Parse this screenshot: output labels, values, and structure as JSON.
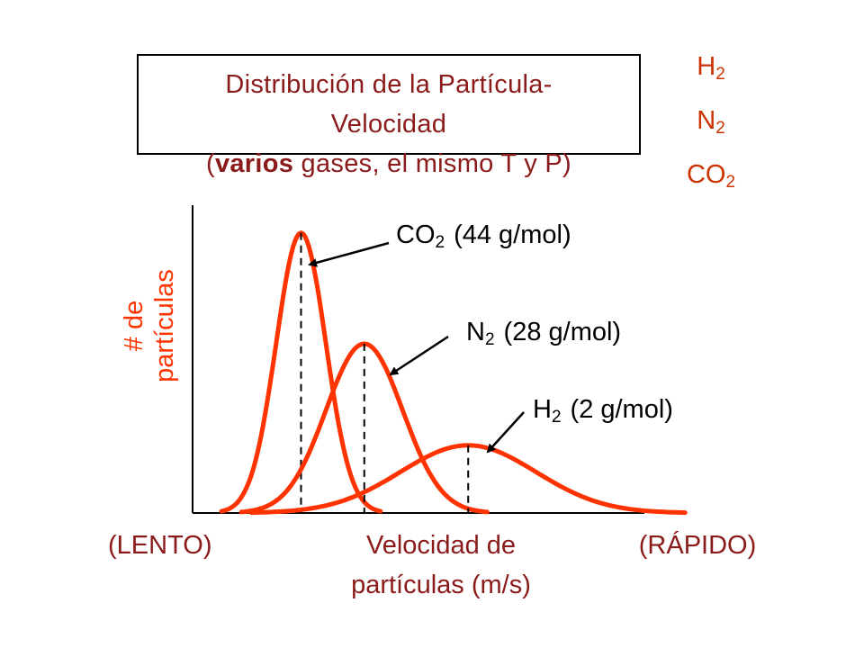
{
  "title": {
    "line1": "Distribución de la Partícula-",
    "line2": "Velocidad",
    "line3_open": "(",
    "line3_bold": "varios",
    "line3_rest": " gases, el mismo T y P)"
  },
  "gas_list": [
    {
      "base": "H",
      "sub": "2"
    },
    {
      "base": "N",
      "sub": "2"
    },
    {
      "base": "CO",
      "sub": "2"
    }
  ],
  "axes": {
    "ylabel_line1": "# de",
    "ylabel_line2": "partículas",
    "xlabel": "Velocidad de partículas (m/s)",
    "x_left": "(LENTO)",
    "x_right": "(RÁPIDO)"
  },
  "chart_data": {
    "type": "line",
    "x_range": [
      0,
      100
    ],
    "y_range": [
      0,
      100
    ],
    "grid": false,
    "series": [
      {
        "name": "CO2 (44 g/mol)",
        "base": "CO",
        "sub": "2",
        "mass": "(44 g/mol)",
        "peak_x": 24,
        "peak_y": 91,
        "width": 5.5
      },
      {
        "name": "N2 (28 g/mol)",
        "base": "N",
        "sub": "2",
        "mass": "(28 g/mol)",
        "peak_x": 38,
        "peak_y": 55,
        "width": 8.5
      },
      {
        "name": "H2 (2 g/mol)",
        "base": "H",
        "sub": "2",
        "mass": "(2 g/mol)",
        "peak_x": 61,
        "peak_y": 22,
        "width": 15
      }
    ],
    "colors": {
      "curve": "#ff3300",
      "axis": "#000000"
    }
  }
}
